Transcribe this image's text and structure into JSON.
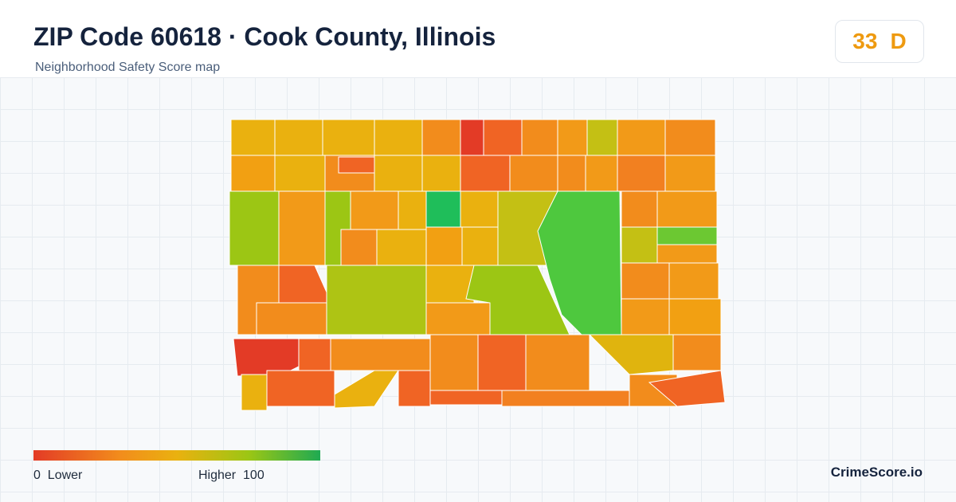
{
  "header": {
    "title": "ZIP Code 60618 · Cook County, Illinois",
    "subtitle": "Neighborhood Safety Score map"
  },
  "score": {
    "value": 33,
    "grade": "D"
  },
  "legend": {
    "min": 0,
    "min_label": "Lower",
    "max_label": "Higher",
    "max": 100
  },
  "brand": "CrimeScore.io"
}
